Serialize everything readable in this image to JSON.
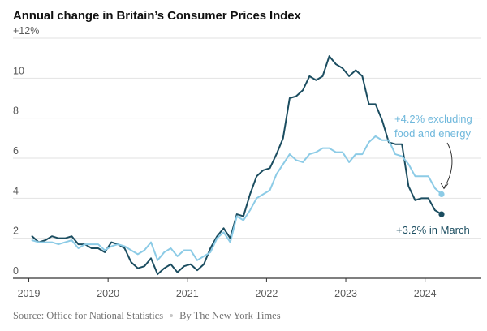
{
  "chart_data": {
    "type": "line",
    "title": "Annual change in Britain’s Consumer Prices Index",
    "xlabel": "",
    "ylabel": "",
    "xlim": [
      2018.8,
      2024.7
    ],
    "ylim": [
      0,
      12
    ],
    "x_ticks": [
      "2019",
      "2020",
      "2021",
      "2022",
      "2023",
      "2024"
    ],
    "y_ticks": [
      "+12%",
      "10",
      "8",
      "6",
      "4",
      "2",
      "0"
    ],
    "grid": "horizontal",
    "series": [
      {
        "name": "",
        "label": "+3.2% in March",
        "color": "#1b4d60",
        "end_value": 3.2,
        "points": [
          [
            "2019-01",
            2.1
          ],
          [
            "2019-02",
            1.8
          ],
          [
            "2019-03",
            1.9
          ],
          [
            "2019-04",
            2.1
          ],
          [
            "2019-05",
            2.0
          ],
          [
            "2019-06",
            2.0
          ],
          [
            "2019-07",
            2.1
          ],
          [
            "2019-08",
            1.7
          ],
          [
            "2019-09",
            1.7
          ],
          [
            "2019-10",
            1.5
          ],
          [
            "2019-11",
            1.5
          ],
          [
            "2019-12",
            1.3
          ],
          [
            "2020-01",
            1.8
          ],
          [
            "2020-02",
            1.7
          ],
          [
            "2020-03",
            1.5
          ],
          [
            "2020-04",
            0.8
          ],
          [
            "2020-05",
            0.5
          ],
          [
            "2020-06",
            0.6
          ],
          [
            "2020-07",
            1.0
          ],
          [
            "2020-08",
            0.2
          ],
          [
            "2020-09",
            0.5
          ],
          [
            "2020-10",
            0.7
          ],
          [
            "2020-11",
            0.3
          ],
          [
            "2020-12",
            0.6
          ],
          [
            "2021-01",
            0.7
          ],
          [
            "2021-02",
            0.4
          ],
          [
            "2021-03",
            0.7
          ],
          [
            "2021-04",
            1.5
          ],
          [
            "2021-05",
            2.1
          ],
          [
            "2021-06",
            2.5
          ],
          [
            "2021-07",
            2.0
          ],
          [
            "2021-08",
            3.2
          ],
          [
            "2021-09",
            3.1
          ],
          [
            "2021-10",
            4.2
          ],
          [
            "2021-11",
            5.1
          ],
          [
            "2021-12",
            5.4
          ],
          [
            "2022-01",
            5.5
          ],
          [
            "2022-02",
            6.2
          ],
          [
            "2022-03",
            7.0
          ],
          [
            "2022-04",
            9.0
          ],
          [
            "2022-05",
            9.1
          ],
          [
            "2022-06",
            9.4
          ],
          [
            "2022-07",
            10.1
          ],
          [
            "2022-08",
            9.9
          ],
          [
            "2022-09",
            10.1
          ],
          [
            "2022-10",
            11.1
          ],
          [
            "2022-11",
            10.7
          ],
          [
            "2022-12",
            10.5
          ],
          [
            "2023-01",
            10.1
          ],
          [
            "2023-02",
            10.4
          ],
          [
            "2023-03",
            10.1
          ],
          [
            "2023-04",
            8.7
          ],
          [
            "2023-05",
            8.7
          ],
          [
            "2023-06",
            7.9
          ],
          [
            "2023-07",
            6.8
          ],
          [
            "2023-08",
            6.7
          ],
          [
            "2023-09",
            6.7
          ],
          [
            "2023-10",
            4.6
          ],
          [
            "2023-11",
            3.9
          ],
          [
            "2023-12",
            4.0
          ],
          [
            "2024-01",
            4.0
          ],
          [
            "2024-02",
            3.4
          ],
          [
            "2024-03",
            3.2
          ]
        ]
      },
      {
        "name": "",
        "label": "+4.2% excluding food and energy",
        "color": "#8ccbe6",
        "end_value": 4.2,
        "points": [
          [
            "2019-01",
            1.9
          ],
          [
            "2019-02",
            1.8
          ],
          [
            "2019-03",
            1.8
          ],
          [
            "2019-04",
            1.8
          ],
          [
            "2019-05",
            1.7
          ],
          [
            "2019-06",
            1.8
          ],
          [
            "2019-07",
            1.9
          ],
          [
            "2019-08",
            1.5
          ],
          [
            "2019-09",
            1.7
          ],
          [
            "2019-10",
            1.7
          ],
          [
            "2019-11",
            1.7
          ],
          [
            "2019-12",
            1.4
          ],
          [
            "2020-01",
            1.6
          ],
          [
            "2020-02",
            1.7
          ],
          [
            "2020-03",
            1.6
          ],
          [
            "2020-04",
            1.4
          ],
          [
            "2020-05",
            1.2
          ],
          [
            "2020-06",
            1.4
          ],
          [
            "2020-07",
            1.8
          ],
          [
            "2020-08",
            0.9
          ],
          [
            "2020-09",
            1.3
          ],
          [
            "2020-10",
            1.5
          ],
          [
            "2020-11",
            1.1
          ],
          [
            "2020-12",
            1.4
          ],
          [
            "2021-01",
            1.4
          ],
          [
            "2021-02",
            0.9
          ],
          [
            "2021-03",
            1.1
          ],
          [
            "2021-04",
            1.3
          ],
          [
            "2021-05",
            2.0
          ],
          [
            "2021-06",
            2.3
          ],
          [
            "2021-07",
            1.8
          ],
          [
            "2021-08",
            3.1
          ],
          [
            "2021-09",
            2.9
          ],
          [
            "2021-10",
            3.4
          ],
          [
            "2021-11",
            4.0
          ],
          [
            "2021-12",
            4.2
          ],
          [
            "2022-01",
            4.4
          ],
          [
            "2022-02",
            5.2
          ],
          [
            "2022-03",
            5.7
          ],
          [
            "2022-04",
            6.2
          ],
          [
            "2022-05",
            5.9
          ],
          [
            "2022-06",
            5.8
          ],
          [
            "2022-07",
            6.2
          ],
          [
            "2022-08",
            6.3
          ],
          [
            "2022-09",
            6.5
          ],
          [
            "2022-10",
            6.5
          ],
          [
            "2022-11",
            6.3
          ],
          [
            "2022-12",
            6.3
          ],
          [
            "2023-01",
            5.8
          ],
          [
            "2023-02",
            6.2
          ],
          [
            "2023-03",
            6.2
          ],
          [
            "2023-04",
            6.8
          ],
          [
            "2023-05",
            7.1
          ],
          [
            "2023-06",
            6.9
          ],
          [
            "2023-07",
            6.9
          ],
          [
            "2023-08",
            6.2
          ],
          [
            "2023-09",
            6.1
          ],
          [
            "2023-10",
            5.7
          ],
          [
            "2023-11",
            5.1
          ],
          [
            "2023-12",
            5.1
          ],
          [
            "2024-01",
            5.1
          ],
          [
            "2024-02",
            4.5
          ],
          [
            "2024-03",
            4.2
          ]
        ]
      }
    ]
  },
  "footer": {
    "source": "Source: Office for National Statistics",
    "byline": "By The New York Times"
  }
}
